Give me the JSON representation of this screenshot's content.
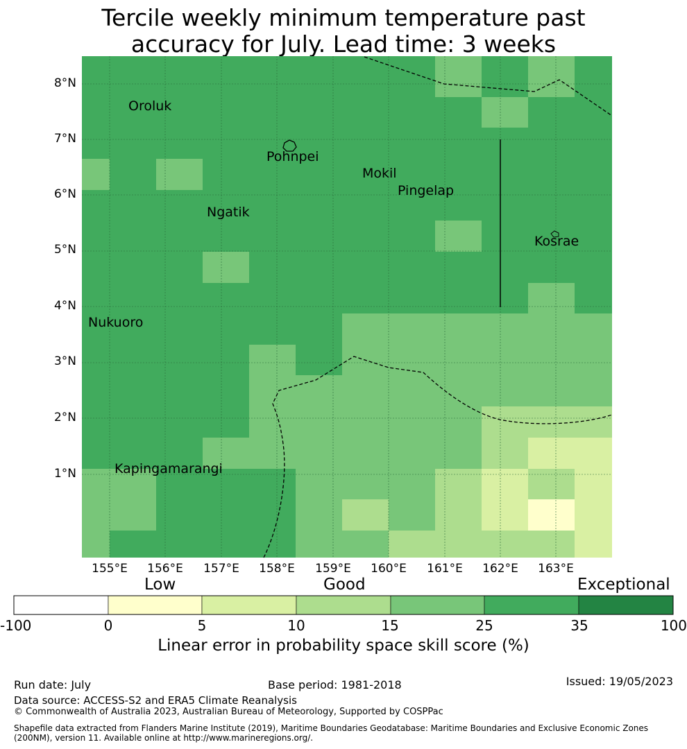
{
  "title": {
    "line1": "Tercile weekly minimum temperature past",
    "line2": "accuracy for July. Lead time: 3 weeks"
  },
  "map": {
    "lat_labels": [
      "8°N",
      "7°N",
      "6°N",
      "5°N",
      "4°N",
      "3°N",
      "2°N",
      "1°N"
    ],
    "lon_labels": [
      "155°E",
      "156°E",
      "157°E",
      "158°E",
      "159°E",
      "160°E",
      "161°E",
      "162°E",
      "163°E"
    ],
    "places": [
      "Oroluk",
      "Pohnpei",
      "Mokil",
      "Pingelap",
      "Ngatik",
      "Kosrae",
      "Nukuoro",
      "Kapingamarangi"
    ],
    "colors": {
      "c0_5": "#ffffcc",
      "c5_10": "#d9f0a3",
      "c10_15": "#addd8e",
      "c15_25": "#78c679",
      "c25_35": "#41ab5d",
      "c35_100": "#238443"
    },
    "grid_default_color": "#41ab5d"
  },
  "colorbar": {
    "categories": [
      "Low",
      "Good",
      "Exceptional"
    ],
    "ticks": [
      "-100",
      "0",
      "5",
      "10",
      "15",
      "25",
      "35",
      "100"
    ],
    "colors": [
      "#ffffff",
      "#ffffcc",
      "#d9f0a3",
      "#addd8e",
      "#78c679",
      "#41ab5d",
      "#238443"
    ],
    "label": "Linear error in probability space skill score (%)"
  },
  "footer": {
    "run_date": "Run date: July",
    "base_period": "Base period: 1981-2018",
    "issued": "Issued: 19/05/2023",
    "data_source": "Data source: ACCESS-S2 and ERA5 Climate Reanalysis",
    "copyright": "© Commonwealth of Australia 2023, Australian Bureau of Meteorology, Supported by COSPPac",
    "shapefile_line1": "Shapefile data extracted from Flanders Marine Institute (2019), Maritime Boundaries Geodatabase: Maritime Boundaries and Exclusive Economic Zones",
    "shapefile_line2": "(200NM), version 11. Available online at http://www.marineregions.org/."
  }
}
